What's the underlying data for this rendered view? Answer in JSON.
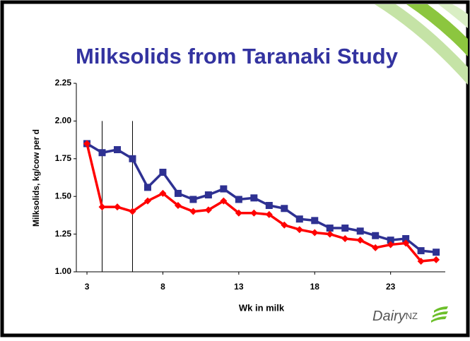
{
  "chart_data": {
    "type": "line",
    "title": "Milksolids from Taranaki Study",
    "xlabel": "Wk in milk",
    "ylabel": "Milksolids, kg/cow per d",
    "x": [
      3,
      4,
      5,
      6,
      7,
      8,
      9,
      10,
      11,
      12,
      13,
      14,
      15,
      16,
      17,
      18,
      19,
      20,
      21,
      22,
      23,
      24,
      25,
      26
    ],
    "series": [
      {
        "name": null,
        "color": "#2e3192",
        "marker": "square",
        "values": [
          1.85,
          1.79,
          1.81,
          1.75,
          1.56,
          1.66,
          1.52,
          1.48,
          1.51,
          1.55,
          1.48,
          1.49,
          1.44,
          1.42,
          1.35,
          1.34,
          1.29,
          1.29,
          1.27,
          1.24,
          1.21,
          1.22,
          1.14,
          1.13
        ]
      },
      {
        "name": null,
        "color": "#ff0000",
        "marker": "diamond",
        "values": [
          1.85,
          1.43,
          1.43,
          1.4,
          1.47,
          1.52,
          1.44,
          1.4,
          1.41,
          1.47,
          1.39,
          1.39,
          1.38,
          1.31,
          1.28,
          1.26,
          1.25,
          1.22,
          1.21,
          1.16,
          1.18,
          1.19,
          1.07,
          1.08
        ]
      }
    ],
    "vlines": [
      4,
      6
    ],
    "xlim": [
      2.3,
      26.6
    ],
    "ylim": [
      1.0,
      2.25
    ],
    "xticks": [
      3,
      8,
      13,
      18,
      23
    ],
    "yticks": [
      {
        "value": 1.0,
        "label": "1.00"
      },
      {
        "value": 1.25,
        "label": "1.25"
      },
      {
        "value": 1.5,
        "label": "1.50"
      },
      {
        "value": 1.75,
        "label": "1.75"
      },
      {
        "value": 2.0,
        "label": "2.00"
      },
      {
        "value": 2.25,
        "label": "2.25"
      }
    ]
  },
  "logo": {
    "name": "Dairy",
    "suffix": "NZ"
  }
}
